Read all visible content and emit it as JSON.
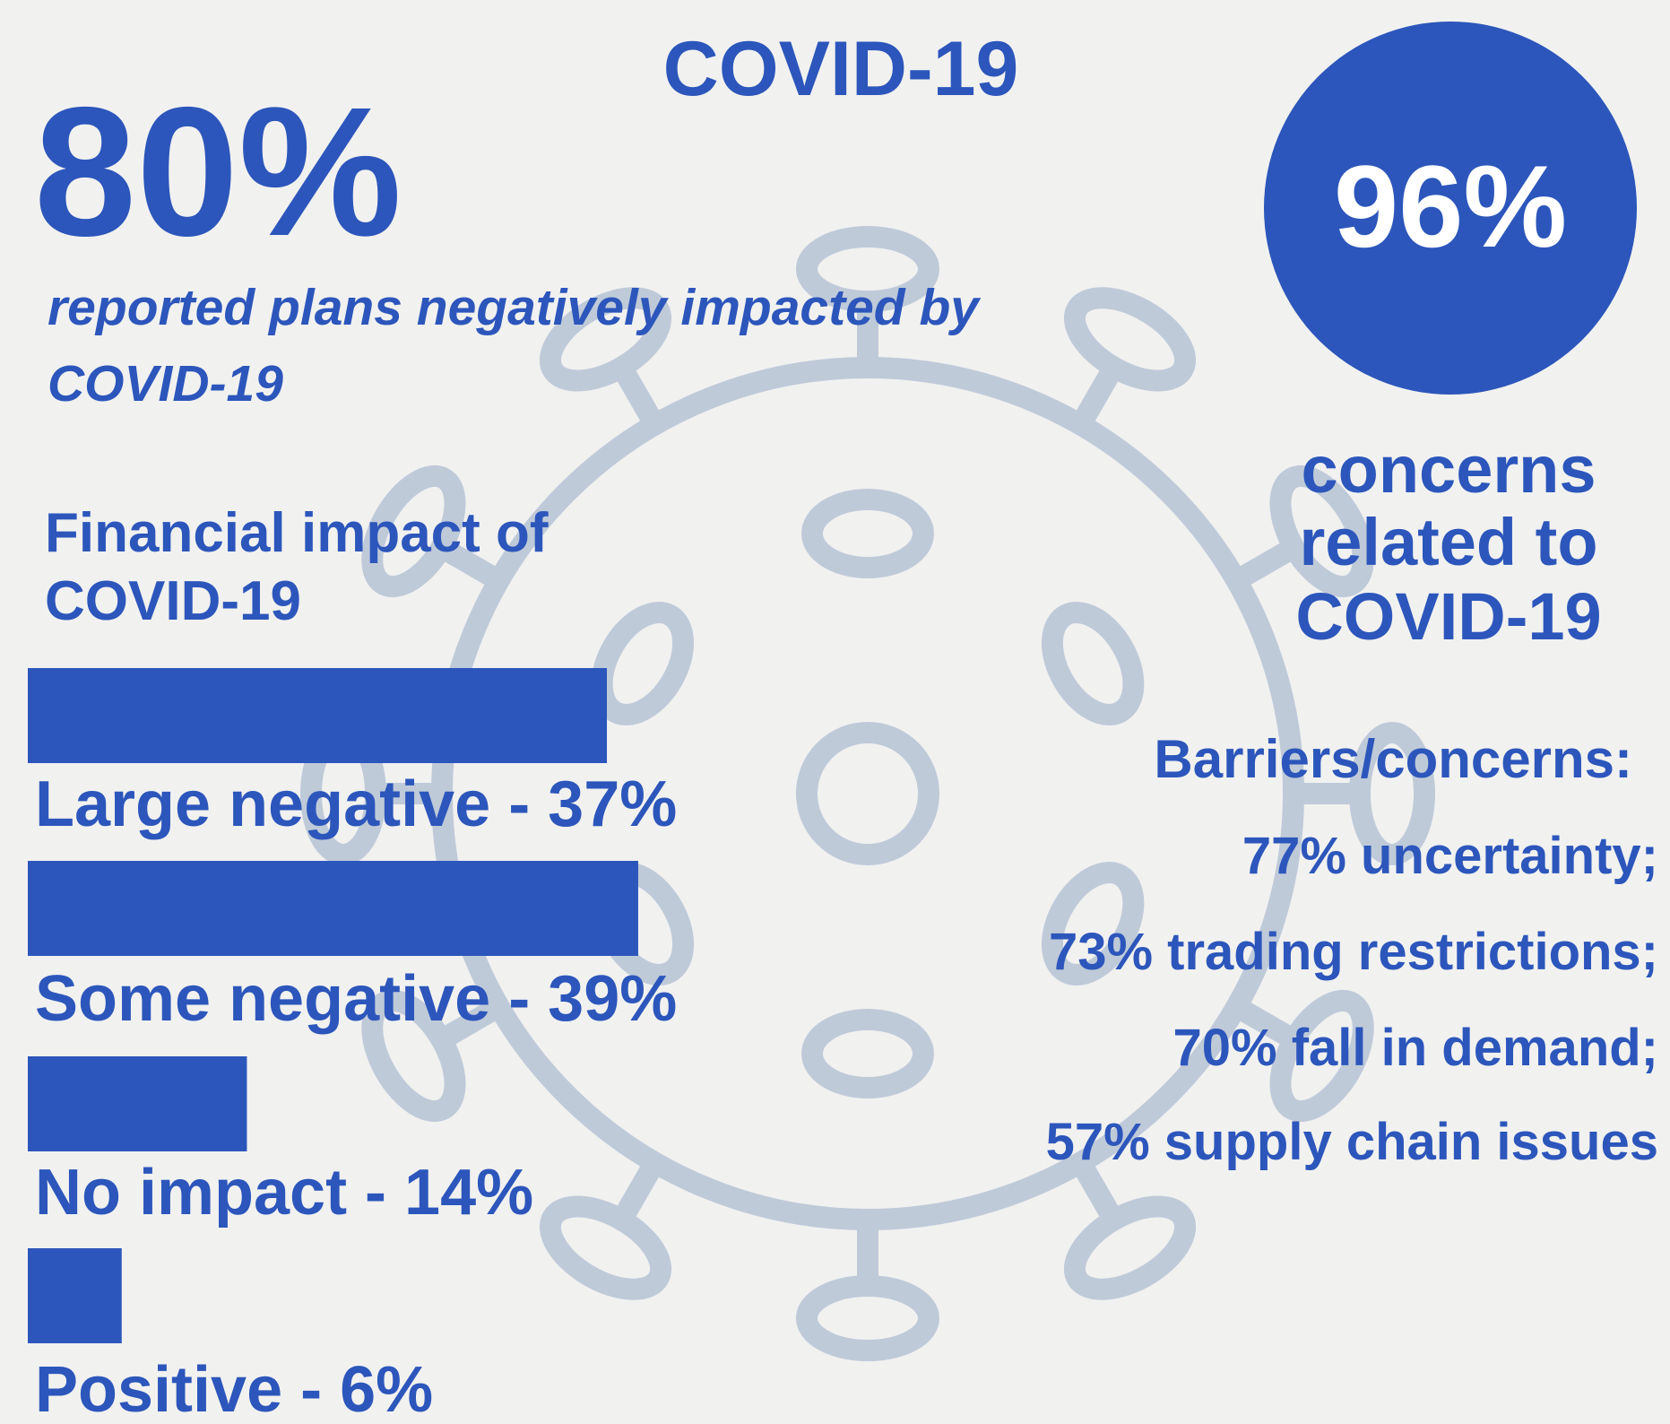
{
  "title": "COVID-19",
  "headline": {
    "value": "80%",
    "text": [
      "reported plans negatively impacted by",
      "COVID-19"
    ]
  },
  "circle": {
    "value": "96%",
    "text": [
      "concerns",
      "related to",
      "COVID-19"
    ]
  },
  "chart_data": {
    "type": "bar",
    "title": [
      "Financial impact of",
      "COVID-19"
    ],
    "values": [
      37,
      39,
      14,
      6
    ],
    "value_labels": [
      "Large negative - 37%",
      "Some negative - 39%",
      "No impact - 14%",
      "Positive - 6%"
    ],
    "color": "#2c56bb"
  },
  "barriers": {
    "heading": "Barriers/concerns:",
    "items": [
      "77% uncertainty;",
      "73% trading restrictions;",
      "70% fall in demand;",
      "57% supply chain issues"
    ]
  }
}
